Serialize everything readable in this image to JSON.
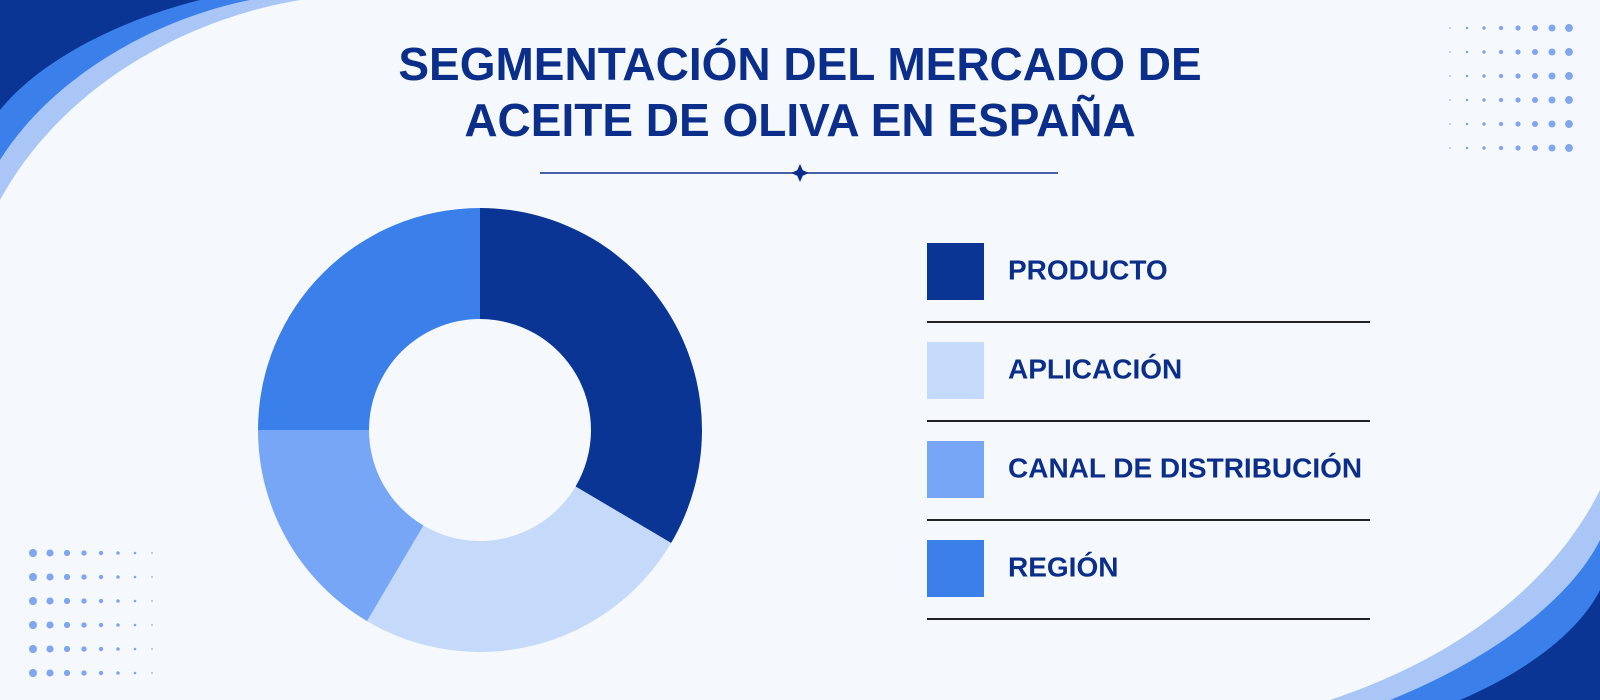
{
  "chart_data": {
    "type": "donut",
    "title_lines": [
      "SEGMENTACIÓN DEL MERCADO DE",
      "ACEITE DE OLIVA EN ESPAÑA"
    ],
    "categories": [
      "PRODUCTO",
      "APLICACIÓN",
      "CANAL DE DISTRIBUCIÓN",
      "REGIÓN"
    ],
    "values": [
      33.5,
      25,
      16.5,
      25
    ],
    "colors": [
      "#0a3595",
      "#c5dafa",
      "#78a6f7",
      "#3b80ea"
    ]
  }
}
